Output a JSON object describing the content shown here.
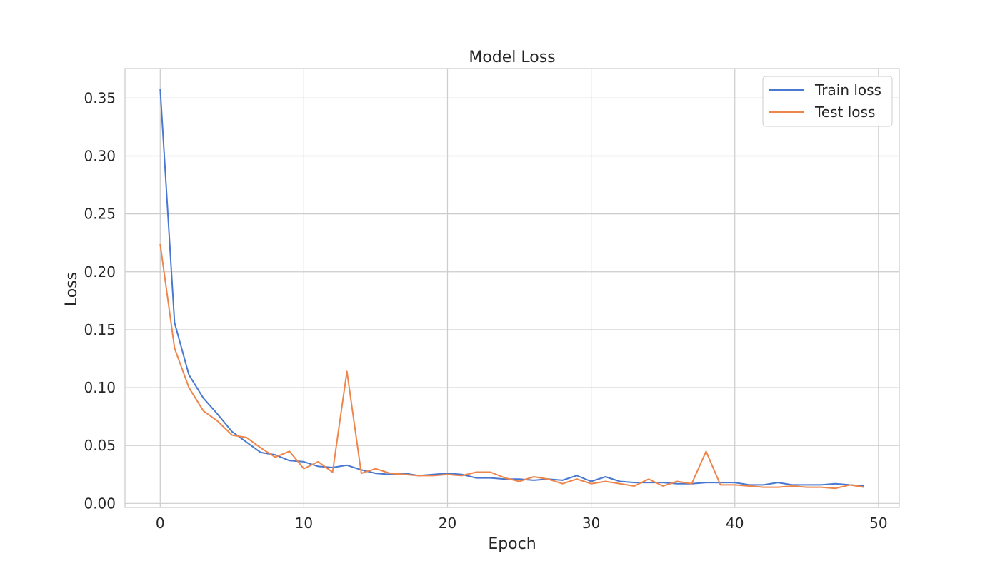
{
  "chart_data": {
    "type": "line",
    "title": "Model Loss",
    "xlabel": "Epoch",
    "ylabel": "Loss",
    "xlim": [
      -2.45,
      51.45
    ],
    "ylim": [
      -0.0035,
      0.3755
    ],
    "xticks": [
      0,
      10,
      20,
      30,
      40,
      50
    ],
    "xtick_labels": [
      "0",
      "10",
      "20",
      "30",
      "40",
      "50"
    ],
    "yticks": [
      0.0,
      0.05,
      0.1,
      0.15,
      0.2,
      0.25,
      0.3,
      0.35
    ],
    "ytick_labels": [
      "0.00",
      "0.05",
      "0.10",
      "0.15",
      "0.20",
      "0.25",
      "0.30",
      "0.35"
    ],
    "grid": true,
    "legend_position": "top-right",
    "colors": {
      "train": "#4878d0",
      "test": "#ee854a",
      "grid": "#cccccc",
      "spine": "#cccccc"
    },
    "x": [
      0,
      1,
      2,
      3,
      4,
      5,
      6,
      7,
      8,
      9,
      10,
      11,
      12,
      13,
      14,
      15,
      16,
      17,
      18,
      19,
      20,
      21,
      22,
      23,
      24,
      25,
      26,
      27,
      28,
      29,
      30,
      31,
      32,
      33,
      34,
      35,
      36,
      37,
      38,
      39,
      40,
      41,
      42,
      43,
      44,
      45,
      46,
      47,
      48,
      49
    ],
    "series": [
      {
        "name": "Train loss",
        "values": [
          0.358,
          0.156,
          0.111,
          0.091,
          0.077,
          0.062,
          0.053,
          0.044,
          0.042,
          0.037,
          0.036,
          0.032,
          0.031,
          0.033,
          0.029,
          0.026,
          0.025,
          0.026,
          0.024,
          0.025,
          0.026,
          0.025,
          0.022,
          0.022,
          0.021,
          0.021,
          0.02,
          0.021,
          0.02,
          0.024,
          0.019,
          0.023,
          0.019,
          0.018,
          0.018,
          0.018,
          0.017,
          0.017,
          0.018,
          0.018,
          0.018,
          0.016,
          0.016,
          0.018,
          0.016,
          0.016,
          0.016,
          0.017,
          0.016,
          0.015
        ]
      },
      {
        "name": "Test loss",
        "values": [
          0.224,
          0.134,
          0.1,
          0.08,
          0.071,
          0.059,
          0.057,
          0.048,
          0.04,
          0.045,
          0.03,
          0.036,
          0.027,
          0.114,
          0.026,
          0.03,
          0.026,
          0.025,
          0.024,
          0.024,
          0.025,
          0.024,
          0.027,
          0.027,
          0.022,
          0.019,
          0.023,
          0.021,
          0.017,
          0.021,
          0.017,
          0.019,
          0.017,
          0.015,
          0.021,
          0.015,
          0.019,
          0.017,
          0.045,
          0.016,
          0.016,
          0.015,
          0.014,
          0.014,
          0.015,
          0.014,
          0.014,
          0.013,
          0.016,
          0.014
        ]
      }
    ]
  }
}
